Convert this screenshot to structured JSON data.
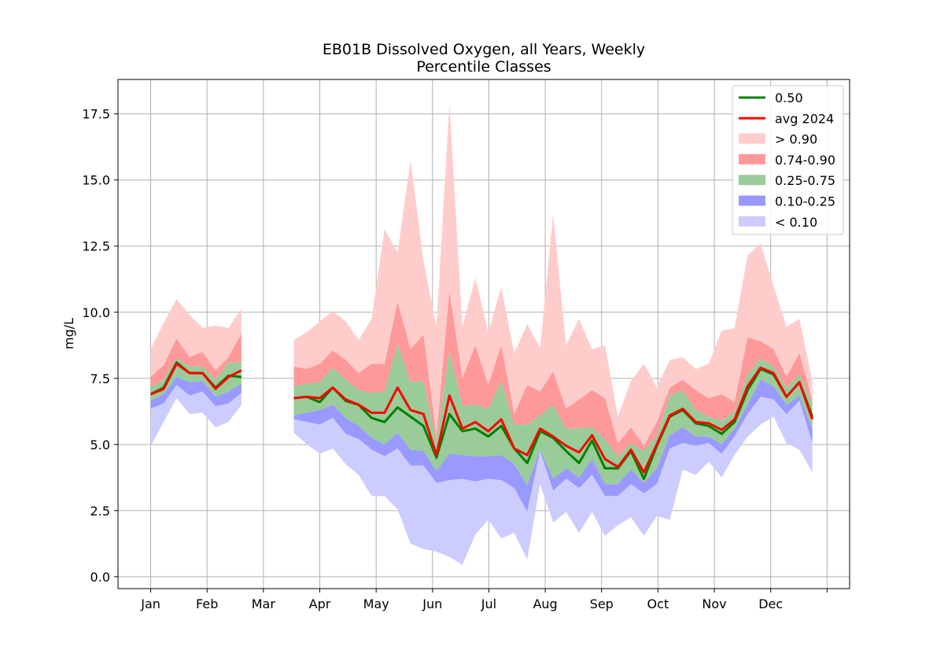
{
  "chart_data": {
    "type": "area",
    "title_line1": "EB01B Dissolved Oxygen, all Years, Weekly",
    "title_line2": "Percentile Classes",
    "xlabel": "",
    "ylabel": "mg/L",
    "ylim": [
      -0.45,
      18.8
    ],
    "yticks": [
      0.0,
      2.5,
      5.0,
      7.5,
      10.0,
      12.5,
      15.0,
      17.5
    ],
    "ytick_labels": [
      "0.0",
      "2.5",
      "5.0",
      "7.5",
      "10.0",
      "12.5",
      "15.0",
      "17.5"
    ],
    "x_axis_unit": "month",
    "xlim": [
      -0.58,
      12.4
    ],
    "xticks": [
      0,
      1,
      2,
      3,
      4,
      5,
      6,
      7,
      8,
      9,
      10,
      11,
      12
    ],
    "xtick_labels": [
      "Jan",
      "Feb",
      "Mar",
      "Apr",
      "May",
      "Jun",
      "Jul",
      "Aug",
      "Sep",
      "Oct",
      "Nov",
      "Dec",
      ""
    ],
    "grid": true,
    "legend_position": "top-right",
    "colors": {
      "median": "#008000",
      "avg2024": "#ff0000",
      "above_90": "#ffcccc",
      "p74_90": "#ff9999",
      "p25_75": "#99cc99",
      "p10_25": "#9999ff",
      "below_10": "#ccccff"
    },
    "legend": [
      {
        "label": "0.50",
        "kind": "line",
        "color": "#008000"
      },
      {
        "label": "avg 2024",
        "kind": "line",
        "color": "#ff0000"
      },
      {
        "label": "> 0.90",
        "kind": "patch",
        "color": "#ffcccc"
      },
      {
        "label": "0.74-0.90",
        "kind": "patch",
        "color": "#ff9999"
      },
      {
        "label": "0.25-0.75",
        "kind": "patch",
        "color": "#99cc99"
      },
      {
        "label": "0.10-0.25",
        "kind": "patch",
        "color": "#9999ff"
      },
      {
        "label": "< 0.10",
        "kind": "patch",
        "color": "#ccccff"
      }
    ],
    "segments": [
      {
        "x": [
          0.0,
          0.23,
          0.46,
          0.69,
          0.92,
          1.15,
          1.38,
          1.61
        ],
        "p00": [
          4.95,
          5.85,
          6.75,
          6.15,
          6.2,
          5.65,
          5.85,
          6.5
        ],
        "p10": [
          6.35,
          6.55,
          7.25,
          6.85,
          7.0,
          6.45,
          6.55,
          6.95
        ],
        "p25": [
          6.65,
          6.9,
          7.55,
          7.35,
          7.4,
          6.8,
          7.0,
          7.3
        ],
        "p75": [
          7.15,
          7.45,
          8.25,
          7.95,
          7.95,
          7.45,
          8.1,
          8.1
        ],
        "p90": [
          7.55,
          8.0,
          9.0,
          8.3,
          8.5,
          7.8,
          8.3,
          9.2
        ],
        "p100": [
          8.6,
          9.6,
          10.5,
          9.9,
          9.4,
          9.5,
          9.4,
          10.15
        ],
        "median": [
          6.9,
          7.15,
          8.1,
          7.7,
          7.7,
          7.15,
          7.6,
          7.55
        ],
        "avg2024": [
          6.9,
          7.1,
          8.05,
          7.7,
          7.7,
          7.1,
          7.55,
          7.8
        ]
      },
      {
        "x": [
          2.54,
          2.77,
          3.0,
          3.23,
          3.46,
          3.69,
          3.92,
          4.15,
          4.38,
          4.61,
          4.84,
          5.07,
          5.3,
          5.53,
          5.76,
          5.99,
          6.22,
          6.45,
          6.68,
          6.91,
          7.14,
          7.37,
          7.6,
          7.83,
          8.06,
          8.29,
          8.52,
          8.75,
          8.98,
          9.21,
          9.44,
          9.67,
          9.9,
          10.13,
          10.36,
          10.59,
          10.82,
          11.05,
          11.28,
          11.51,
          11.74
        ],
        "p00": [
          5.45,
          5.0,
          4.65,
          4.85,
          4.25,
          3.85,
          3.05,
          3.05,
          2.55,
          1.25,
          1.05,
          0.95,
          0.75,
          0.45,
          1.6,
          2.15,
          1.45,
          1.65,
          0.65,
          3.5,
          2.05,
          2.45,
          1.65,
          2.45,
          1.55,
          1.95,
          2.25,
          1.55,
          2.3,
          2.15,
          4.05,
          3.85,
          4.35,
          3.75,
          4.6,
          5.3,
          5.75,
          6.05,
          5.05,
          4.8,
          3.95
        ],
        "p10": [
          5.95,
          5.85,
          5.75,
          6.0,
          5.4,
          5.2,
          4.8,
          4.55,
          4.85,
          4.2,
          4.2,
          3.55,
          3.65,
          3.7,
          3.6,
          3.7,
          3.65,
          3.35,
          2.45,
          4.75,
          3.25,
          3.7,
          3.35,
          3.85,
          3.05,
          3.05,
          3.5,
          3.15,
          3.5,
          4.85,
          5.05,
          4.95,
          5.05,
          4.65,
          5.3,
          6.15,
          6.8,
          6.7,
          6.15,
          6.65,
          5.05
        ],
        "p25": [
          6.1,
          6.2,
          6.3,
          6.5,
          6.0,
          5.7,
          5.25,
          5.0,
          5.45,
          4.8,
          4.75,
          4.0,
          4.65,
          4.6,
          4.55,
          4.55,
          4.6,
          4.25,
          3.45,
          4.8,
          3.7,
          4.1,
          3.75,
          4.45,
          3.5,
          3.5,
          4.05,
          3.55,
          4.1,
          5.35,
          5.65,
          5.3,
          5.3,
          5.0,
          5.6,
          6.5,
          7.45,
          7.2,
          6.5,
          6.85,
          5.55
        ],
        "p75": [
          7.2,
          7.3,
          7.35,
          7.9,
          7.45,
          7.05,
          6.95,
          7.0,
          8.8,
          7.35,
          7.4,
          5.1,
          8.55,
          6.45,
          6.5,
          6.35,
          7.4,
          5.75,
          5.75,
          6.1,
          6.5,
          5.6,
          5.6,
          5.65,
          5.2,
          4.55,
          5.05,
          4.75,
          5.35,
          6.85,
          7.05,
          6.3,
          6.05,
          5.9,
          6.25,
          7.65,
          8.25,
          7.95,
          7.15,
          7.65,
          6.55
        ],
        "p90": [
          7.95,
          7.85,
          8.05,
          8.55,
          8.2,
          7.7,
          8.05,
          8.05,
          10.4,
          8.6,
          9.15,
          5.35,
          10.8,
          7.5,
          8.75,
          7.25,
          8.75,
          6.15,
          7.25,
          7.0,
          7.75,
          6.35,
          6.7,
          7.05,
          6.75,
          5.05,
          5.65,
          4.95,
          5.85,
          7.15,
          7.45,
          7.05,
          6.75,
          6.9,
          6.6,
          9.05,
          8.9,
          8.6,
          7.55,
          8.45,
          6.65
        ],
        "p100": [
          8.95,
          9.25,
          9.65,
          10.05,
          9.65,
          8.95,
          9.75,
          13.15,
          12.25,
          15.75,
          11.95,
          9.45,
          17.9,
          9.45,
          11.3,
          9.25,
          10.95,
          8.45,
          9.55,
          8.65,
          13.7,
          8.75,
          9.75,
          8.6,
          8.75,
          6.05,
          7.4,
          8.05,
          7.15,
          8.2,
          8.3,
          7.85,
          8.05,
          9.3,
          9.4,
          12.15,
          12.6,
          11.0,
          9.45,
          9.75,
          7.4
        ],
        "median": [
          6.75,
          6.8,
          6.6,
          7.15,
          6.65,
          6.5,
          6.0,
          5.85,
          6.4,
          6.05,
          5.7,
          4.5,
          6.15,
          5.5,
          5.6,
          5.3,
          5.7,
          4.85,
          4.3,
          5.5,
          5.25,
          4.75,
          4.3,
          5.15,
          4.1,
          4.1,
          4.75,
          3.7,
          4.95,
          6.05,
          6.3,
          5.8,
          5.7,
          5.4,
          5.85,
          7.05,
          7.85,
          7.65,
          6.8,
          7.35,
          6.05
        ],
        "avg2024": [
          6.75,
          6.8,
          6.75,
          7.15,
          6.7,
          6.5,
          6.2,
          6.2,
          7.15,
          6.3,
          6.15,
          4.6,
          6.85,
          5.6,
          5.85,
          5.5,
          5.95,
          4.85,
          4.6,
          5.6,
          5.3,
          4.95,
          4.7,
          5.35,
          4.45,
          4.15,
          4.8,
          3.95,
          5.0,
          6.1,
          6.35,
          5.85,
          5.8,
          5.55,
          5.95,
          7.2,
          7.9,
          7.7,
          6.8,
          7.35,
          5.95
        ]
      }
    ]
  }
}
